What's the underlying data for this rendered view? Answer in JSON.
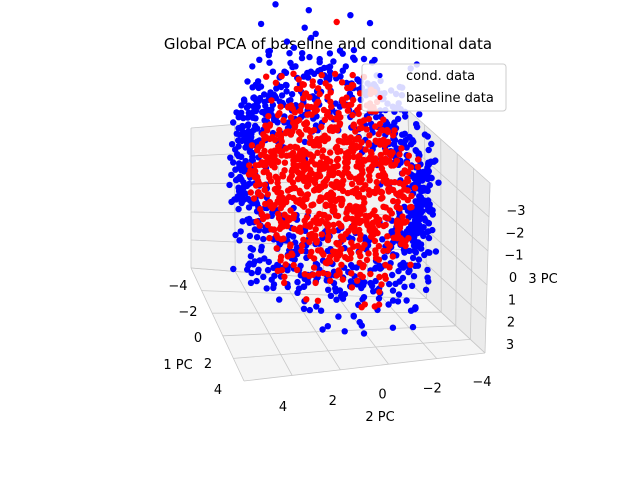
{
  "chart_data": {
    "type": "scatter",
    "projection": "3d",
    "title": "Global PCA of baseline and conditional data",
    "axes": {
      "x": {
        "label": "1 PC",
        "ticks": [
          "−4",
          "−2",
          "0",
          "2",
          "4"
        ],
        "range": [
          -4,
          4
        ]
      },
      "y": {
        "label": "2 PC",
        "ticks": [
          "4",
          "2",
          "0",
          "−2",
          "−4"
        ],
        "range": [
          4,
          -4
        ]
      },
      "z": {
        "label": "3 PC",
        "ticks": [
          "−3",
          "−2",
          "−1",
          "0",
          "1",
          "2",
          "3"
        ],
        "range": [
          -3,
          3
        ]
      }
    },
    "legend": {
      "placement": "top-right"
    },
    "series": [
      {
        "name": "cond. data",
        "color": "#0000ff",
        "spread": [
          3.4,
          3.3,
          2.8
        ],
        "n": 900
      },
      {
        "name": "baseline data",
        "color": "#ff0000",
        "spread": [
          2.8,
          2.7,
          2.4
        ],
        "n": 900
      }
    ]
  }
}
